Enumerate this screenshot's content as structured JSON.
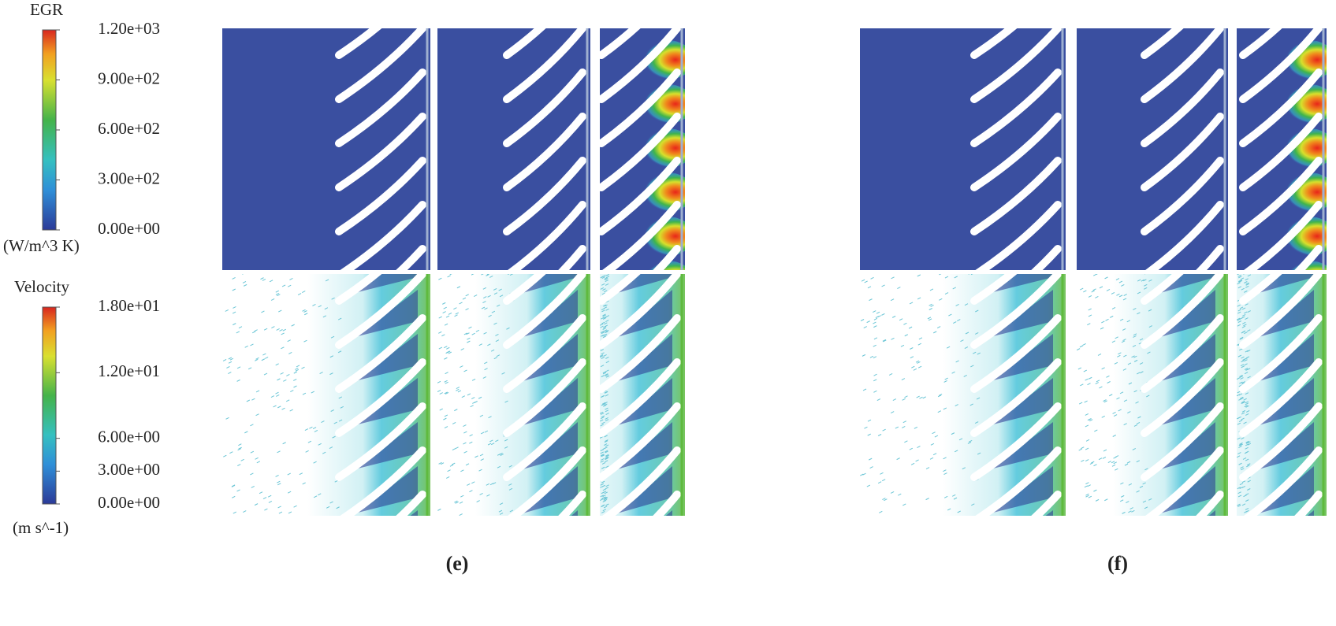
{
  "legends": [
    {
      "title": "EGR",
      "unit": "(W/m^3 K)",
      "range": [
        0,
        1200
      ],
      "ticks": [
        {
          "value": 1200,
          "label": "1.20e+03"
        },
        {
          "value": 900,
          "label": "9.00e+02"
        },
        {
          "value": 600,
          "label": "6.00e+02"
        },
        {
          "value": 300,
          "label": "3.00e+02"
        },
        {
          "value": 0,
          "label": "0.00e+00"
        }
      ]
    },
    {
      "title": "Velocity",
      "unit": "(m s^-1)",
      "range": [
        0,
        18
      ],
      "ticks": [
        {
          "value": 18,
          "label": "1.80e+01"
        },
        {
          "value": 12,
          "label": "1.20e+01"
        },
        {
          "value": 6,
          "label": "6.00e+00"
        },
        {
          "value": 3,
          "label": "3.00e+00"
        },
        {
          "value": 0,
          "label": "0.00e+00"
        }
      ]
    }
  ],
  "panels": [
    {
      "label": "(e)"
    },
    {
      "label": "(f)"
    }
  ]
}
